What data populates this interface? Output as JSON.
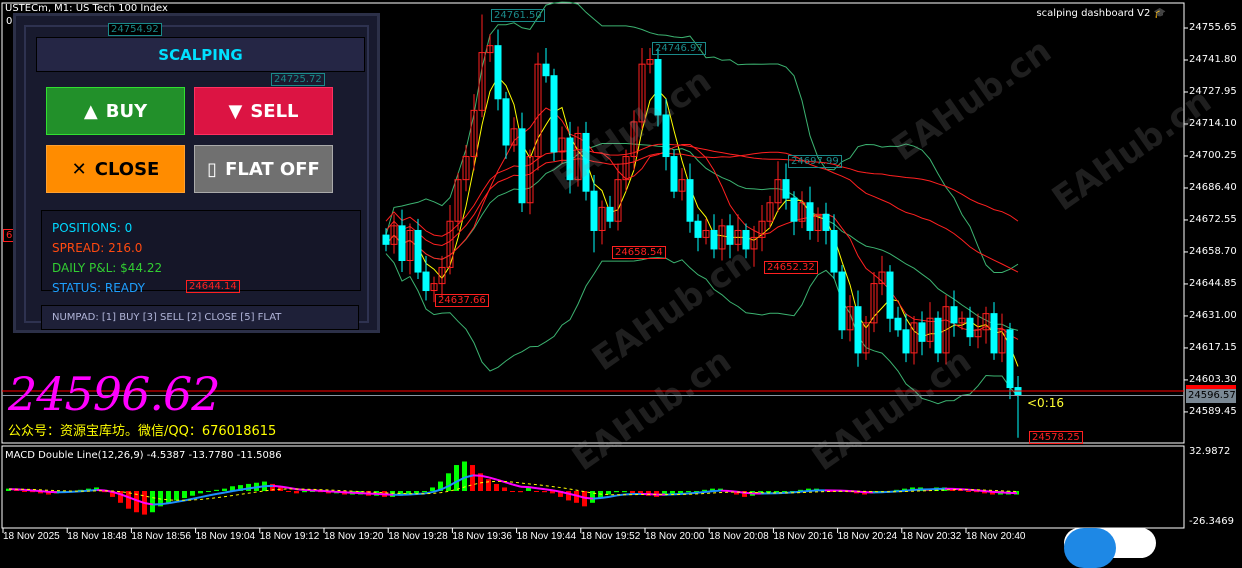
{
  "window": {
    "title": "USTECm, M1:  US Tech 100 Index",
    "subwindow_zero": "0",
    "ea_name": "scalping dashboard V2",
    "ea_icon": "graduation-cap-icon"
  },
  "colors": {
    "background": "#000000",
    "bull_candle": "#ff2020",
    "bear_candle": "#00ffff",
    "bollinger": "#3cb371",
    "fast_ma": "#ffff00",
    "slow_ma": "#ff2020",
    "zigzag_up": "#8a2be2",
    "zigzag_down": "#ff00ff",
    "macd_up": "#00ff00",
    "macd_down": "#ff0000",
    "macd_line_up": "#1e90ff",
    "macd_line_down": "#ff00ff",
    "signal": "#ffff00"
  },
  "price_axis": [
    "24755.65",
    "24741.80",
    "24727.95",
    "24714.10",
    "24700.25",
    "24686.40",
    "24672.55",
    "24658.70",
    "24644.85",
    "24631.00",
    "24617.15",
    "24603.30",
    "24589.45"
  ],
  "bid_price": "24596.57",
  "bar_timer": "<0:16",
  "big_price": "24596.62",
  "promo_text": "公众号：资源宝库坊。微信/QQ：676018615",
  "zigzag_labels": {
    "h1": "24754.92",
    "h2": "24761.50",
    "h3": "24746.97",
    "h4": "24697.99",
    "h5": "24725.72",
    "l1": "65.92",
    "l2": "24644.14",
    "l3": "24637.66",
    "l4": "24658.54",
    "l5": "24652.32",
    "l6": "24578.25"
  },
  "candles_closes": [
    24662,
    24670,
    24655,
    24668,
    24650,
    24642,
    24645,
    24652,
    24672,
    24690,
    24700,
    24720,
    24745,
    24748,
    24725,
    24705,
    24712,
    24680,
    24700,
    24740,
    24735,
    24702,
    24708,
    24690,
    24710,
    24685,
    24668,
    24678,
    24672,
    24690,
    24700,
    24715,
    24740,
    24742,
    24718,
    24700,
    24685,
    24690,
    24672,
    24665,
    24668,
    24660,
    24670,
    24662,
    24668,
    24660,
    24665,
    24672,
    24680,
    24690,
    24682,
    24672,
    24680,
    24668,
    24675,
    24668,
    24650,
    24625,
    24635,
    24615,
    24628,
    24645,
    24650,
    24630,
    24625,
    24615,
    24628,
    24620,
    24630,
    24615,
    24635,
    24628,
    24630,
    24622,
    24625,
    24632,
    24615,
    24625,
    24600,
    24596.57
  ],
  "macd": {
    "label": "MACD Double Line(12,26,9) -4.5387 -13.7780 -11.5086",
    "axis_max": "32.9872",
    "axis_min": "-26.3469",
    "histogram": [
      2,
      1,
      0,
      -1,
      -2,
      -3,
      -2,
      -1,
      0,
      1,
      2,
      3,
      -1,
      -5,
      -10,
      -15,
      -18,
      -20,
      -18,
      -13,
      -10,
      -8,
      -6,
      -4,
      -2,
      0,
      1,
      2,
      4,
      5,
      6,
      7,
      8,
      6,
      3,
      0,
      -2,
      -1,
      0,
      -1,
      -2,
      -2,
      -3,
      -3,
      -3,
      -4,
      -4,
      -5,
      -5,
      -4,
      -3,
      -2,
      -1,
      3,
      8,
      15,
      22,
      25,
      22,
      15,
      10,
      6,
      3,
      0,
      -1,
      3,
      0,
      -1,
      -2,
      -5,
      -8,
      -10,
      -13,
      -10,
      -6,
      -3,
      -1,
      -1,
      -2,
      -3,
      -4,
      -5,
      -4,
      -3,
      -2,
      -1,
      0,
      1,
      2,
      2,
      -1,
      -3,
      -5,
      -4,
      -3,
      -2,
      -2,
      -1,
      0,
      1,
      2,
      2,
      1,
      0,
      0,
      -1,
      -2,
      -3,
      -2,
      -1,
      0,
      1,
      2,
      3,
      3,
      2,
      3,
      3,
      2,
      1,
      0,
      -1,
      -2,
      -3,
      -3,
      -3,
      -3
    ]
  },
  "time_axis": [
    "18 Nov 2025",
    "18 Nov 18:48",
    "18 Nov 18:56",
    "18 Nov 19:04",
    "18 Nov 19:12",
    "18 Nov 19:20",
    "18 Nov 19:28",
    "18 Nov 19:36",
    "18 Nov 19:44",
    "18 Nov 19:52",
    "18 Nov 20:00",
    "18 Nov 20:08",
    "18 Nov 20:16",
    "18 Nov 20:24",
    "18 Nov 20:32",
    "18 Nov 20:40"
  ],
  "panel": {
    "title": "SCALPING",
    "buy": {
      "icon": "▲",
      "label": "BUY"
    },
    "sell": {
      "icon": "▼",
      "label": "SELL"
    },
    "close": {
      "icon": "✕",
      "label": "CLOSE"
    },
    "flat": {
      "icon": "▯",
      "label": "FLAT OFF"
    },
    "positions": "POSITIONS: 0",
    "spread": "SPREAD: 216.0",
    "daily_pnl": "DAILY P&L: $44.22",
    "status": "STATUS: READY",
    "hint": "NUMPAD: [1] BUY  [3] SELL  [2] CLOSE  [5] FLAT"
  },
  "watermark": "EAHub.cn"
}
